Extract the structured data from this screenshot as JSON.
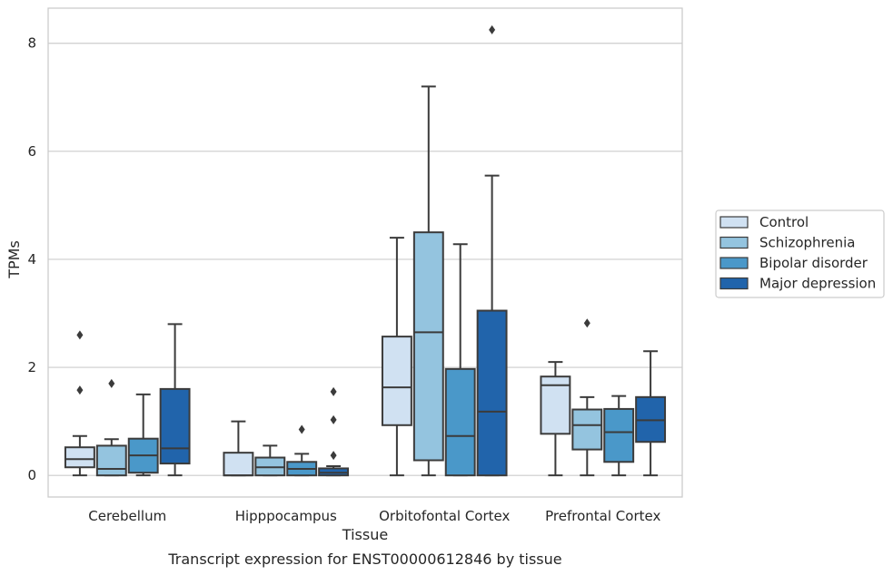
{
  "chart_data": {
    "type": "box",
    "caption": "Transcript expression for ENST00000612846 by tissue",
    "xlabel": "Tissue",
    "ylabel": "TPMs",
    "ylim": [
      -0.4,
      8.65
    ],
    "yticks": [
      0,
      2,
      4,
      6,
      8
    ],
    "grid": true,
    "legend_position": "right",
    "categories": [
      "Cerebellum",
      "Hipppocampus",
      "Orbitofontal Cortex",
      "Prefrontal Cortex"
    ],
    "series": [
      {
        "name": "Control",
        "color": "#d0e1f2",
        "boxes": [
          {
            "whisker_low": 0,
            "q1": 0.15,
            "median": 0.3,
            "q3": 0.52,
            "whisker_high": 0.73,
            "outliers": [
              1.58,
              2.6
            ]
          },
          {
            "whisker_low": 0,
            "q1": 0,
            "median": 0,
            "q3": 0.42,
            "whisker_high": 1.0,
            "outliers": []
          },
          {
            "whisker_low": 0,
            "q1": 0.93,
            "median": 1.63,
            "q3": 2.57,
            "whisker_high": 4.4,
            "outliers": []
          },
          {
            "whisker_low": 0,
            "q1": 0.77,
            "median": 1.67,
            "q3": 1.83,
            "whisker_high": 2.1,
            "outliers": []
          }
        ]
      },
      {
        "name": "Schizophrenia",
        "color": "#94c4df",
        "boxes": [
          {
            "whisker_low": 0,
            "q1": 0,
            "median": 0.12,
            "q3": 0.55,
            "whisker_high": 0.67,
            "outliers": [
              1.7
            ]
          },
          {
            "whisker_low": 0,
            "q1": 0,
            "median": 0.15,
            "q3": 0.33,
            "whisker_high": 0.55,
            "outliers": []
          },
          {
            "whisker_low": 0,
            "q1": 0.28,
            "median": 2.65,
            "q3": 4.5,
            "whisker_high": 7.2,
            "outliers": []
          },
          {
            "whisker_low": 0,
            "q1": 0.48,
            "median": 0.93,
            "q3": 1.22,
            "whisker_high": 1.45,
            "outliers": [
              2.82
            ]
          }
        ]
      },
      {
        "name": "Bipolar disorder",
        "color": "#4a98c9",
        "boxes": [
          {
            "whisker_low": 0,
            "q1": 0.05,
            "median": 0.37,
            "q3": 0.68,
            "whisker_high": 1.5,
            "outliers": []
          },
          {
            "whisker_low": 0,
            "q1": 0,
            "median": 0.12,
            "q3": 0.25,
            "whisker_high": 0.4,
            "outliers": [
              0.85
            ]
          },
          {
            "whisker_low": 0,
            "q1": 0,
            "median": 0.73,
            "q3": 1.97,
            "whisker_high": 4.28,
            "outliers": []
          },
          {
            "whisker_low": 0,
            "q1": 0.25,
            "median": 0.8,
            "q3": 1.23,
            "whisker_high": 1.47,
            "outliers": []
          }
        ]
      },
      {
        "name": "Major depression",
        "color": "#2164ab",
        "boxes": [
          {
            "whisker_low": 0,
            "q1": 0.22,
            "median": 0.5,
            "q3": 1.6,
            "whisker_high": 2.8,
            "outliers": []
          },
          {
            "whisker_low": 0,
            "q1": 0,
            "median": 0.05,
            "q3": 0.13,
            "whisker_high": 0.17,
            "outliers": [
              0.37,
              1.03,
              1.55
            ]
          },
          {
            "whisker_low": 0,
            "q1": 0,
            "median": 1.18,
            "q3": 3.05,
            "whisker_high": 5.55,
            "outliers": [
              8.25
            ]
          },
          {
            "whisker_low": 0,
            "q1": 0.62,
            "median": 1.02,
            "q3": 1.45,
            "whisker_high": 2.3,
            "outliers": []
          }
        ]
      }
    ]
  }
}
